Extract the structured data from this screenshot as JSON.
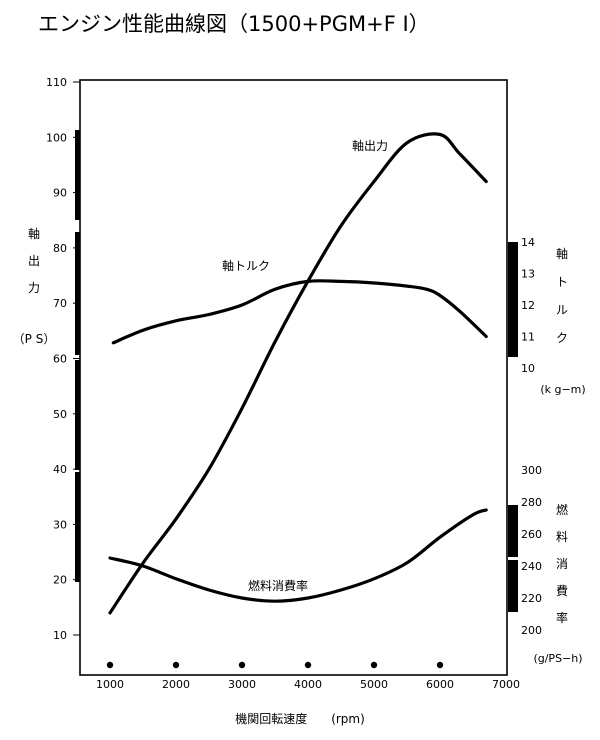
{
  "chart_data": {
    "type": "line",
    "title": "エンジン性能曲線図（1500+PGM+F I）",
    "xlabel": "機関回転速度　　(rpm)",
    "x_ticks": [
      "1000",
      "2000",
      "3000",
      "4000",
      "5000",
      "6000",
      "7000"
    ],
    "xlim": [
      500,
      7000
    ],
    "axes": {
      "power": {
        "label_chars": [
          "軸",
          "出",
          "力"
        ],
        "unit": "（P S）",
        "ylim": [
          5,
          110
        ],
        "ticks": [
          "10",
          "20",
          "30",
          "40",
          "50",
          "60",
          "70",
          "80",
          "90",
          "100",
          "110"
        ]
      },
      "torque": {
        "label_chars": [
          "軸",
          "ト",
          "ル",
          "ク"
        ],
        "unit": "(k g−m)",
        "ylim": [
          10,
          14
        ],
        "ticks": [
          "10",
          "11",
          "12",
          "13",
          "14"
        ]
      },
      "fuel": {
        "label_chars": [
          "燃",
          "料",
          "消",
          "費",
          "率"
        ],
        "unit": "(g/PS−h)",
        "ylim": [
          200,
          300
        ],
        "ticks": [
          "200",
          "220",
          "240",
          "260",
          "280",
          "300"
        ]
      }
    },
    "series": [
      {
        "name": "軸出力",
        "axis": "power",
        "x": [
          1000,
          1500,
          2000,
          2500,
          3000,
          3500,
          4000,
          4500,
          5000,
          5500,
          6000,
          6300,
          6700
        ],
        "y": [
          14,
          23,
          31,
          40,
          51,
          63,
          74,
          84,
          92,
          99,
          100.5,
          97,
          92
        ]
      },
      {
        "name": "軸トルク",
        "axis": "torque",
        "x": [
          1050,
          1500,
          2000,
          2500,
          3000,
          3500,
          4000,
          4500,
          5000,
          5500,
          5800,
          6000,
          6300,
          6700
        ],
        "y": [
          10.8,
          11.2,
          11.5,
          11.7,
          12.0,
          12.5,
          12.75,
          12.75,
          12.7,
          12.6,
          12.5,
          12.3,
          11.8,
          11.0
        ]
      },
      {
        "name": "燃料消費率",
        "axis": "fuel",
        "x": [
          1000,
          1500,
          2000,
          2500,
          3000,
          3500,
          4000,
          4500,
          5000,
          5500,
          6000,
          6500,
          6700
        ],
        "y": [
          245,
          240,
          232,
          225,
          220,
          218,
          220,
          225,
          232,
          242,
          258,
          272,
          275
        ]
      }
    ],
    "annotations": [
      "軸出力",
      "軸トルク",
      "燃料消費率"
    ],
    "markers_x": [
      1000,
      2000,
      3000,
      4000,
      5000,
      6000
    ],
    "grid": false,
    "legend": "none"
  }
}
